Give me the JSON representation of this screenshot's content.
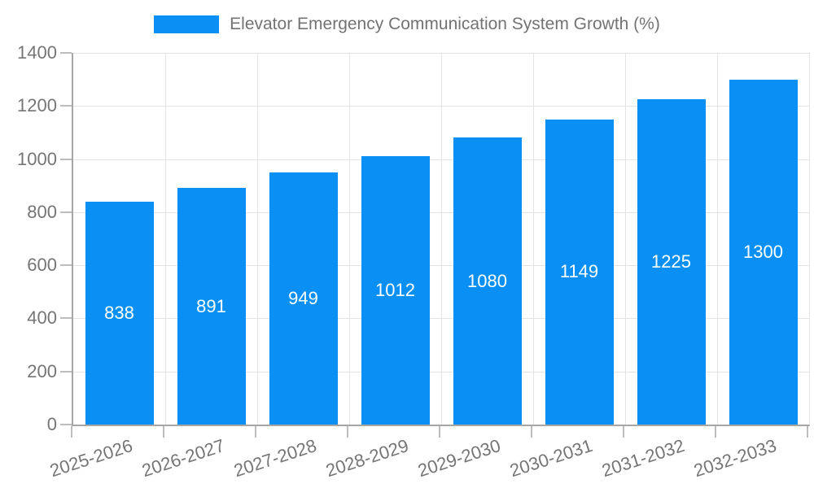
{
  "chart_data": {
    "type": "bar",
    "title": "Elevator Emergency Communication System Growth (%)",
    "legend_entries": [
      "Elevator Emergency Communication System Growth (%)"
    ],
    "legend_position": "top-center",
    "categories": [
      "2025-2026",
      "2026-2027",
      "2027-2028",
      "2028-2029",
      "2029-2030",
      "2030-2031",
      "2031-2032",
      "2032-2033"
    ],
    "values": [
      838,
      891,
      949,
      1012,
      1080,
      1149,
      1225,
      1300
    ],
    "bar_labels": [
      "838",
      "891",
      "949",
      "1012",
      "1080",
      "1149",
      "1225",
      "1300"
    ],
    "xlabel": "",
    "ylabel": "",
    "ylim": [
      0,
      1400
    ],
    "ytick_step": 200,
    "ytick_labels": [
      "0",
      "200",
      "400",
      "600",
      "800",
      "1000",
      "1200",
      "1400"
    ],
    "grid": true,
    "x_tick_label_rotation_deg": -18
  },
  "colors": {
    "bar": "#0a90f5",
    "bar_label": "#ffffff",
    "grid": "#e4e4e4",
    "axis": "#a6a6a6",
    "tick": "#bdbdbd",
    "tick_text": "#757575",
    "legend_text": "#737373",
    "background": "#ffffff"
  }
}
